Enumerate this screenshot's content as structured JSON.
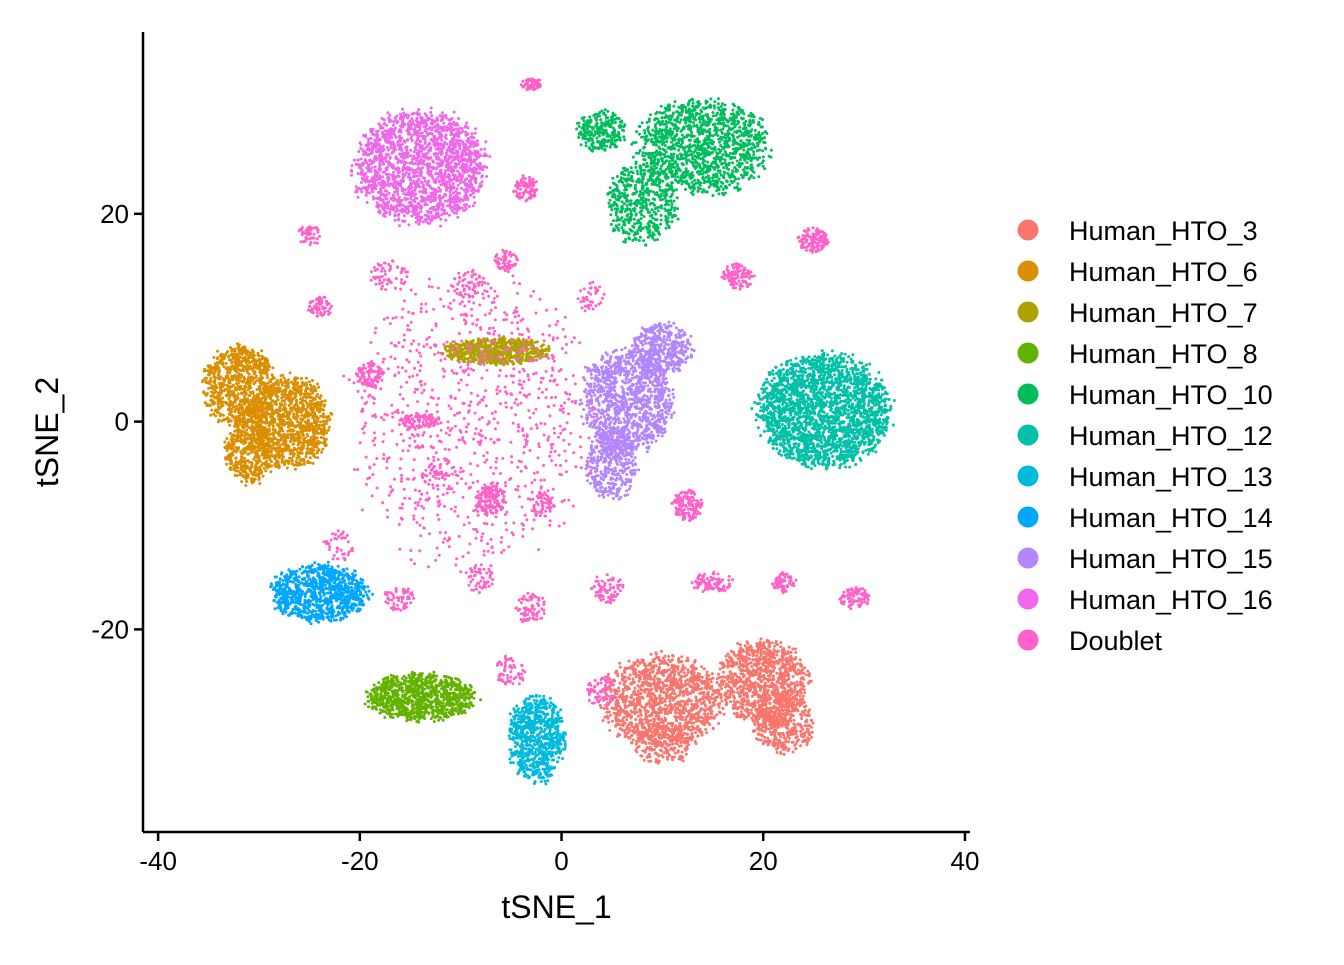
{
  "chart_data": {
    "type": "scatter",
    "title": "",
    "xlabel": "tSNE_1",
    "ylabel": "tSNE_2",
    "xlim": [
      -41.5,
      40.5
    ],
    "ylim": [
      -39.5,
      37.5
    ],
    "x_ticks": [
      -40,
      -20,
      0,
      20,
      40
    ],
    "x_tick_labels": [
      "-40",
      "-20",
      "0",
      "20",
      "40"
    ],
    "y_ticks": [
      -20,
      0,
      20
    ],
    "y_tick_labels": [
      "-20",
      "0",
      "20"
    ],
    "grid": false,
    "legend": "right",
    "series": [
      {
        "name": "Human_HTO_3",
        "color": "#F8766D",
        "clusters": [
          [
            10,
            -27,
            6,
            4.5,
            1300
          ],
          [
            20,
            -25,
            4.5,
            4,
            1000
          ],
          [
            22,
            -29,
            3,
            3,
            400
          ],
          [
            10,
            -31,
            3,
            2,
            150
          ]
        ]
      },
      {
        "name": "Human_HTO_6",
        "color": "#DB8E00",
        "clusters": [
          [
            -32,
            3.5,
            3.5,
            4,
            800
          ],
          [
            -27,
            0,
            4,
            4.5,
            1100
          ],
          [
            -31,
            -3,
            2.5,
            3,
            400
          ]
        ]
      },
      {
        "name": "Human_HTO_7",
        "color": "#AEA200",
        "clusters": [
          [
            -6.5,
            6.8,
            5.2,
            1.3,
            700
          ]
        ]
      },
      {
        "name": "Human_HTO_8",
        "color": "#64B200",
        "clusters": [
          [
            -14,
            -26.5,
            5.5,
            2.3,
            950
          ]
        ]
      },
      {
        "name": "Human_HTO_10",
        "color": "#00BD5C",
        "clusters": [
          [
            14,
            26.5,
            6.5,
            4.5,
            1300
          ],
          [
            8,
            21,
            3.5,
            4,
            500
          ],
          [
            4,
            28,
            2.5,
            2,
            250
          ]
        ]
      },
      {
        "name": "Human_HTO_12",
        "color": "#00C1A7",
        "clusters": [
          [
            26,
            1,
            6.5,
            5.5,
            2300
          ]
        ]
      },
      {
        "name": "Human_HTO_13",
        "color": "#00BADE",
        "clusters": [
          [
            -2.5,
            -30.5,
            2.8,
            4.2,
            750
          ]
        ]
      },
      {
        "name": "Human_HTO_14",
        "color": "#00A6FF",
        "clusters": [
          [
            -24,
            -16.5,
            4.8,
            2.8,
            950
          ]
        ]
      },
      {
        "name": "Human_HTO_15",
        "color": "#B385FF",
        "clusters": [
          [
            6.5,
            2,
            4.5,
            5,
            1100
          ],
          [
            10,
            7,
            3,
            2.5,
            400
          ],
          [
            5,
            -4,
            2.5,
            3.5,
            400
          ]
        ]
      },
      {
        "name": "Human_HTO_16",
        "color": "#EF67EB",
        "clusters": [
          [
            -14,
            24.5,
            6.5,
            5.5,
            1800
          ]
        ]
      },
      {
        "name": "Doublet",
        "color": "#FF61C9",
        "clusters": [
          [
            -3,
            32.5,
            1,
            0.6,
            60
          ],
          [
            -3.5,
            22.5,
            1.2,
            1.2,
            90
          ],
          [
            -7,
            -7.5,
            1.5,
            1.5,
            150
          ],
          [
            12.5,
            -8,
            1.5,
            1.5,
            130
          ],
          [
            25,
            17.5,
            1.5,
            1.2,
            120
          ],
          [
            17.5,
            14,
            1.5,
            1.2,
            100
          ],
          [
            -19,
            4.5,
            1.3,
            1.2,
            100
          ],
          [
            -14,
            0,
            2,
            0.8,
            90
          ],
          [
            -24,
            11,
            1.2,
            1,
            60
          ],
          [
            -25,
            18,
            1.2,
            1,
            50
          ],
          [
            -5.5,
            15.5,
            1.2,
            1,
            60
          ],
          [
            -2,
            -8,
            1.2,
            1.2,
            50
          ],
          [
            15,
            -15.5,
            2,
            1,
            90
          ],
          [
            22,
            -15.5,
            1.2,
            1,
            60
          ],
          [
            29,
            -17,
            1.5,
            1,
            80
          ],
          [
            4.5,
            -16,
            1.5,
            1.5,
            70
          ],
          [
            -3,
            -18,
            1.5,
            1.5,
            70
          ],
          [
            -16,
            -17,
            1.5,
            1.2,
            60
          ],
          [
            -5,
            -24,
            1.5,
            1.5,
            60
          ],
          [
            4,
            -26,
            1.5,
            1.5,
            60
          ],
          [
            -8,
            -15,
            1.5,
            1.5,
            50
          ],
          [
            -9,
            13,
            2,
            1.5,
            60
          ],
          [
            -17,
            14,
            2,
            1.5,
            60
          ],
          [
            -22,
            -12,
            1.5,
            1.5,
            40
          ],
          [
            -12,
            -5,
            1.5,
            1.5,
            40
          ],
          [
            3,
            12,
            1.5,
            1.5,
            40
          ],
          [
            -9,
            0,
            12,
            14,
            900
          ]
        ]
      }
    ]
  }
}
